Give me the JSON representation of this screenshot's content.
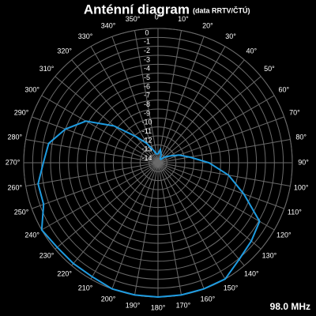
{
  "chart_data": {
    "type": "polar",
    "title": "Anténní diagram",
    "subtitle": "(data RRTV/ČTÚ)",
    "annotation": "98.0 MHz",
    "color": "#1e9be0",
    "theta": [
      0,
      10,
      20,
      30,
      40,
      50,
      60,
      70,
      80,
      90,
      100,
      110,
      120,
      130,
      140,
      150,
      160,
      170,
      180,
      190,
      200,
      210,
      220,
      230,
      240,
      250,
      260,
      270,
      280,
      290,
      300,
      310,
      320,
      330,
      340,
      350
    ],
    "values": [
      -14,
      -13.5,
      -14,
      -14.5,
      -14.5,
      -14,
      -13.5,
      -12.5,
      -11.4,
      -9.3,
      -7,
      -4.8,
      -1.9,
      -1.4,
      -0.9,
      0,
      0,
      0,
      0,
      0,
      0,
      -0.3,
      -0.3,
      -0.3,
      0,
      -1.4,
      -1.4,
      -2.2,
      -2.6,
      -4,
      -5.7,
      -8.6,
      -11.2,
      -12.5,
      -13.5,
      -14
    ],
    "rlim": [
      -15,
      0
    ],
    "rticks": [
      0,
      -1,
      -2,
      -3,
      -4,
      -5,
      -6,
      -7,
      -8,
      -9,
      -10,
      -11,
      -12,
      -13,
      -14
    ],
    "thetaticks": [
      {
        "value": 0,
        "label": "0°"
      },
      {
        "value": 10,
        "label": "10°"
      },
      {
        "value": 20,
        "label": "20°"
      },
      {
        "value": 30,
        "label": "30°"
      },
      {
        "value": 40,
        "label": "40°"
      },
      {
        "value": 50,
        "label": "50°"
      },
      {
        "value": 60,
        "label": "60°"
      },
      {
        "value": 70,
        "label": "70°"
      },
      {
        "value": 80,
        "label": "80°"
      },
      {
        "value": 90,
        "label": "90°"
      },
      {
        "value": 100,
        "label": "100°"
      },
      {
        "value": 110,
        "label": "110°"
      },
      {
        "value": 120,
        "label": "120°"
      },
      {
        "value": 130,
        "label": "130°"
      },
      {
        "value": 140,
        "label": "140°"
      },
      {
        "value": 150,
        "label": "150°"
      },
      {
        "value": 160,
        "label": "160°"
      },
      {
        "value": 170,
        "label": "170°"
      },
      {
        "value": 180,
        "label": "180°"
      },
      {
        "value": 190,
        "label": "190°"
      },
      {
        "value": 200,
        "label": "200°"
      },
      {
        "value": 210,
        "label": "210°"
      },
      {
        "value": 220,
        "label": "220°"
      },
      {
        "value": 230,
        "label": "230°"
      },
      {
        "value": 240,
        "label": "240°"
      },
      {
        "value": 250,
        "label": "250°"
      },
      {
        "value": 260,
        "label": "260°"
      },
      {
        "value": 270,
        "label": "270°"
      },
      {
        "value": 280,
        "label": "280°"
      },
      {
        "value": 290,
        "label": "290°"
      },
      {
        "value": 300,
        "label": "300°"
      },
      {
        "value": 310,
        "label": "310°"
      },
      {
        "value": 320,
        "label": "320°"
      },
      {
        "value": 330,
        "label": "330°"
      },
      {
        "value": 340,
        "label": "340°"
      },
      {
        "value": 350,
        "label": "350°"
      }
    ],
    "grid": true
  }
}
